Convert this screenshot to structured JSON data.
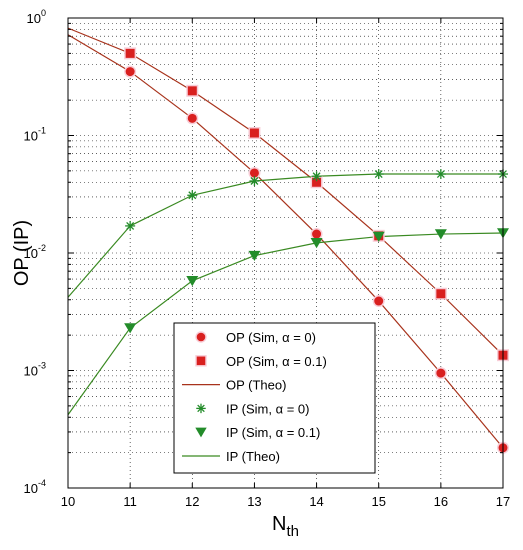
{
  "chart_data": {
    "type": "line",
    "title": "",
    "xlabel": "N",
    "xlabel_sub": "th",
    "ylabel": "OP (IP)",
    "x": [
      10,
      11,
      12,
      13,
      14,
      15,
      16,
      17
    ],
    "xlim": [
      10,
      17
    ],
    "ylim": [
      0.0001,
      1
    ],
    "yscale": "log",
    "x_ticks": [
      "10",
      "11",
      "12",
      "13",
      "14",
      "15",
      "16",
      "17"
    ],
    "y_ticks": [
      {
        "base": "10",
        "exp": "-4"
      },
      {
        "base": "10",
        "exp": "-3"
      },
      {
        "base": "10",
        "exp": "-2"
      },
      {
        "base": "10",
        "exp": "-1"
      },
      {
        "base": "10",
        "exp": "0"
      }
    ],
    "grid": true,
    "legend_position": "bottom-center",
    "series": [
      {
        "name": "OP (Sim, α = 0)",
        "kind": "markers",
        "marker": "circle",
        "color": "#d9201f",
        "x": [
          11,
          12,
          13,
          14,
          15,
          16,
          17
        ],
        "values": [
          0.35,
          0.14,
          0.048,
          0.0145,
          0.0039,
          0.00095,
          0.00022
        ]
      },
      {
        "name": "OP (Sim, α = 0.1)",
        "kind": "markers",
        "marker": "square",
        "color": "#d9201f",
        "x": [
          11,
          12,
          13,
          14,
          15,
          16,
          17
        ],
        "values": [
          0.5,
          0.24,
          0.105,
          0.04,
          0.014,
          0.0045,
          0.00135
        ]
      },
      {
        "name": "OP (Theo)",
        "kind": "line",
        "color": "#a8331c",
        "x": [
          10,
          11,
          12,
          13,
          14,
          15,
          16,
          17
        ],
        "values": [
          0.72,
          0.35,
          0.14,
          0.048,
          0.0145,
          0.0039,
          0.00095,
          0.00022
        ],
        "values_b": [
          0.82,
          0.5,
          0.24,
          0.105,
          0.04,
          0.014,
          0.0045,
          0.00135
        ]
      },
      {
        "name": "IP (Sim, α = 0)",
        "kind": "markers",
        "marker": "asterisk",
        "color": "#238c2a",
        "x": [
          11,
          12,
          13,
          14,
          15,
          16,
          17
        ],
        "values": [
          0.017,
          0.031,
          0.041,
          0.045,
          0.047,
          0.047,
          0.047
        ]
      },
      {
        "name": "IP (Sim, α = 0.1)",
        "kind": "markers",
        "marker": "triangle-down",
        "color": "#238c2a",
        "x": [
          11,
          12,
          13,
          14,
          15,
          16,
          17
        ],
        "values": [
          0.0023,
          0.0058,
          0.0095,
          0.0122,
          0.0138,
          0.0145,
          0.0148
        ]
      },
      {
        "name": "IP (Theo)",
        "kind": "line",
        "color": "#3a8a22",
        "x": [
          10,
          11,
          12,
          13,
          14,
          15,
          16,
          17
        ],
        "values": [
          0.0042,
          0.017,
          0.031,
          0.041,
          0.045,
          0.047,
          0.047,
          0.047
        ],
        "values_b": [
          0.00042,
          0.0023,
          0.0058,
          0.0095,
          0.0122,
          0.0138,
          0.0145,
          0.0148
        ]
      }
    ]
  }
}
